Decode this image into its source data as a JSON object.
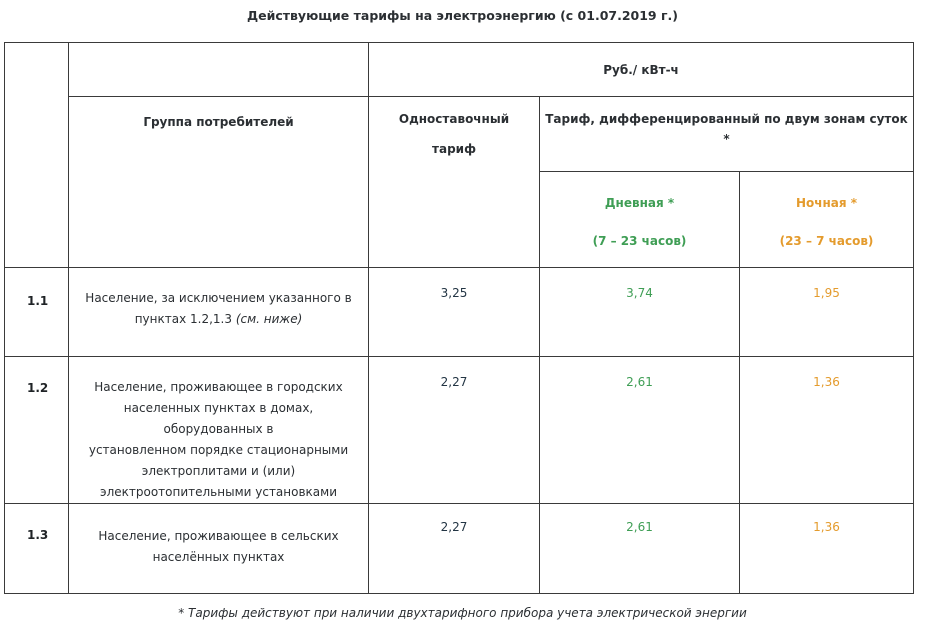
{
  "title": "Действующие тарифы на электроэнергию (с 01.07.2019 г.)",
  "header": {
    "units": "Руб./ кВт-ч",
    "group_label": "Группа потребителей",
    "single_rate_line1": "Одноставочный",
    "single_rate_line2": "тариф",
    "two_zone_label": "Тариф, дифференцированный  по двум зонам суток",
    "two_zone_mark": "*",
    "day_label": "Дневная *",
    "day_hours": "(7 – 23 часов)",
    "night_label": "Ночная *",
    "night_hours": "(23 – 7 часов)"
  },
  "colors": {
    "day": "#3f9e55",
    "night": "#e49b2d",
    "single": "#233544"
  },
  "rows": [
    {
      "num": "1.1",
      "desc_lines": [
        "Население, за исключением указанного в",
        "пунктах 1.2,1.3 "
      ],
      "desc_note": "(см. ниже)",
      "single": "3,25",
      "day": "3,74",
      "night": "1,95"
    },
    {
      "num": "1.2",
      "desc_lines": [
        "Население, проживающее в городских",
        "населенных пунктах в домах, оборудованных в",
        "установленном порядке стационарными",
        "электроплитами и (или)",
        "электроотопительными установками"
      ],
      "single": "2,27",
      "day": "2,61",
      "night": "1,36"
    },
    {
      "num": "1.3",
      "desc_lines": [
        "Население, проживающее в сельских",
        "населённых пунктах"
      ],
      "single": "2,27",
      "day": "2,61",
      "night": "1,36"
    }
  ],
  "footnote": "* Тарифы действуют при наличии двухтарифного прибора учета электрической энергии"
}
